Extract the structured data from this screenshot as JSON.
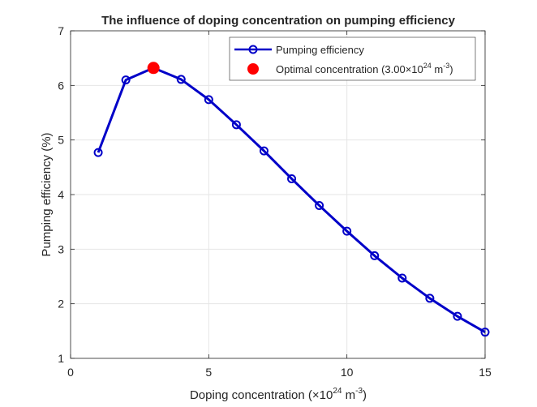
{
  "chart_data": {
    "type": "line",
    "title": "The influence of doping concentration on pumping efficiency",
    "xlabel": {
      "prefix": "Doping concentration (×10",
      "exp": "24",
      "mid": " m",
      "unit_exp": "-3",
      "suffix": ")"
    },
    "ylabel": "Pumping efficiency (%)",
    "xlim": [
      0,
      15
    ],
    "ylim": [
      1,
      7
    ],
    "xticks": [
      0,
      5,
      10,
      15
    ],
    "yticks": [
      1,
      2,
      3,
      4,
      5,
      6,
      7
    ],
    "grid": true,
    "legend_position": "top-right",
    "series": [
      {
        "name": "Pumping efficiency",
        "color": "#0000c8",
        "marker": "open-circle",
        "x": [
          1,
          2,
          3,
          4,
          5,
          6,
          7,
          8,
          9,
          10,
          11,
          12,
          13,
          14,
          15
        ],
        "y": [
          4.77,
          6.1,
          6.32,
          6.11,
          5.74,
          5.28,
          4.8,
          4.29,
          3.8,
          3.33,
          2.88,
          2.47,
          2.1,
          1.77,
          1.48
        ]
      }
    ],
    "highlight": {
      "name": "Optimal concentration",
      "legend": {
        "prefix": "Optimal concentration (3.00×10",
        "exp": "24",
        "mid": " m",
        "unit_exp": "-3",
        "suffix": ")"
      },
      "color": "#ff0000",
      "x": 3,
      "y": 6.32
    }
  }
}
